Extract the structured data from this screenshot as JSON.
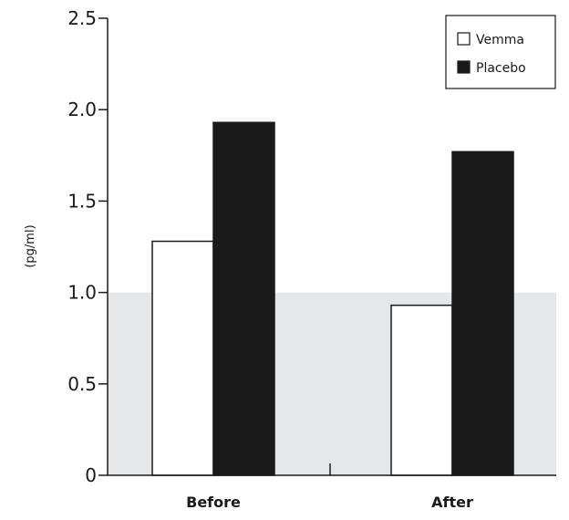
{
  "colors": {
    "band": "#e6e7e8",
    "axis": "#1a1a1a",
    "vemma_fill": "#ffffff",
    "placebo_fill": "#1a1a1a",
    "bar_stroke": "#1a1a1a"
  },
  "chart_data": {
    "type": "bar",
    "title": "",
    "xlabel": "",
    "ylabel": "(pg/ml)",
    "ylim": [
      0,
      2.5
    ],
    "yticks": [
      "0",
      "0.5",
      "1.0",
      "1.5",
      "2.0",
      "2.5"
    ],
    "ytick_values": [
      0,
      0.5,
      1.0,
      1.5,
      2.0,
      2.5
    ],
    "categories": [
      "Before",
      "After"
    ],
    "series": [
      {
        "name": "Vemma",
        "values": [
          1.28,
          0.93
        ]
      },
      {
        "name": "Placebo",
        "values": [
          1.93,
          1.77
        ]
      }
    ],
    "shaded_band": [
      0,
      1.0
    ],
    "grid": false,
    "legend_position": "top-right"
  }
}
